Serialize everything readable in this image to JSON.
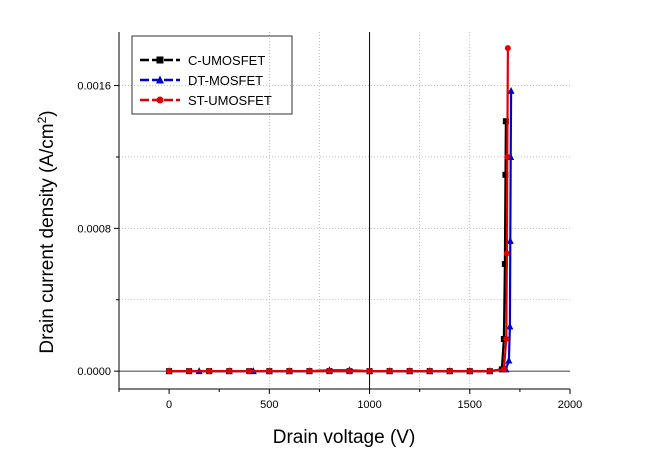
{
  "chart_data": {
    "type": "line",
    "xlabel": "Drain voltage (V)",
    "ylabel_main": "Drain current density (A/cm",
    "ylabel_sup": "2",
    "ylabel_close": ")",
    "xlim": [
      -250,
      2000
    ],
    "ylim": [
      -0.0001,
      0.0019
    ],
    "x_ticks": [
      0,
      500,
      1000,
      1500,
      2000
    ],
    "x_tick_labels": [
      "0",
      "500",
      "1000",
      "1500",
      "2000"
    ],
    "y_ticks": [
      0.0,
      0.0008,
      0.0016
    ],
    "y_tick_labels": [
      "0.0000",
      "0.0008",
      "0.0016"
    ],
    "grid": true,
    "legend_position": "top-left",
    "series": [
      {
        "name": "C-UMOSFET",
        "color": "#000000",
        "marker": "square",
        "x": [
          0,
          100,
          200,
          300,
          400,
          500,
          600,
          700,
          800,
          900,
          1000,
          1100,
          1200,
          1300,
          1400,
          1500,
          1600,
          1660,
          1670,
          1675,
          1678,
          1680
        ],
        "y": [
          0,
          0,
          0,
          0,
          0,
          0,
          0,
          0,
          0,
          0,
          0,
          0,
          0,
          0,
          0,
          0,
          0,
          1e-05,
          0.00018,
          0.0006,
          0.0011,
          0.0014
        ]
      },
      {
        "name": "DT-MOSFET",
        "color": "#0000cc",
        "marker": "triangle",
        "x": [
          0,
          150,
          300,
          420,
          500,
          600,
          700,
          800,
          900,
          1000,
          1100,
          1200,
          1300,
          1400,
          1500,
          1600,
          1680,
          1695,
          1700,
          1702,
          1704,
          1706
        ],
        "y": [
          0,
          0,
          0,
          0,
          0,
          0,
          0,
          5e-06,
          5e-06,
          0,
          0,
          0,
          0,
          0,
          0,
          0,
          1e-05,
          6e-05,
          0.00025,
          0.00073,
          0.0012,
          0.00157
        ]
      },
      {
        "name": "ST-UMOSFET",
        "color": "#e00000",
        "marker": "circle",
        "x": [
          0,
          100,
          200,
          300,
          400,
          500,
          600,
          700,
          800,
          900,
          1000,
          1100,
          1200,
          1300,
          1400,
          1500,
          1600,
          1670,
          1682,
          1685,
          1687,
          1690
        ],
        "y": [
          0,
          0,
          0,
          0,
          0,
          0,
          0,
          0,
          0,
          0,
          0,
          0,
          0,
          0,
          0,
          0,
          0,
          1e-05,
          0.00018,
          0.00066,
          0.0012,
          0.00181
        ]
      }
    ]
  }
}
